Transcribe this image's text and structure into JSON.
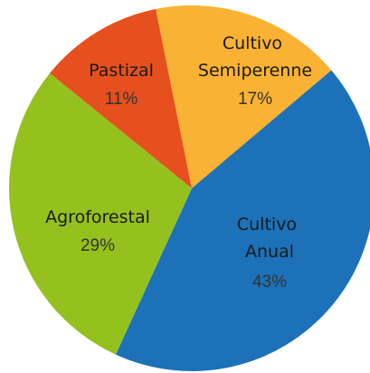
{
  "chart_data": {
    "type": "pie",
    "categories": [
      "Cultivo Semiperenne",
      "Cultivo Anual",
      "Agroforestal",
      "Pastizal"
    ],
    "values": [
      17,
      43,
      29,
      11
    ],
    "value_labels": [
      "17%",
      "43%",
      "29%",
      "11%"
    ],
    "colors": [
      "#F9B233",
      "#1D71B8",
      "#95C11F",
      "#E6501E"
    ]
  }
}
